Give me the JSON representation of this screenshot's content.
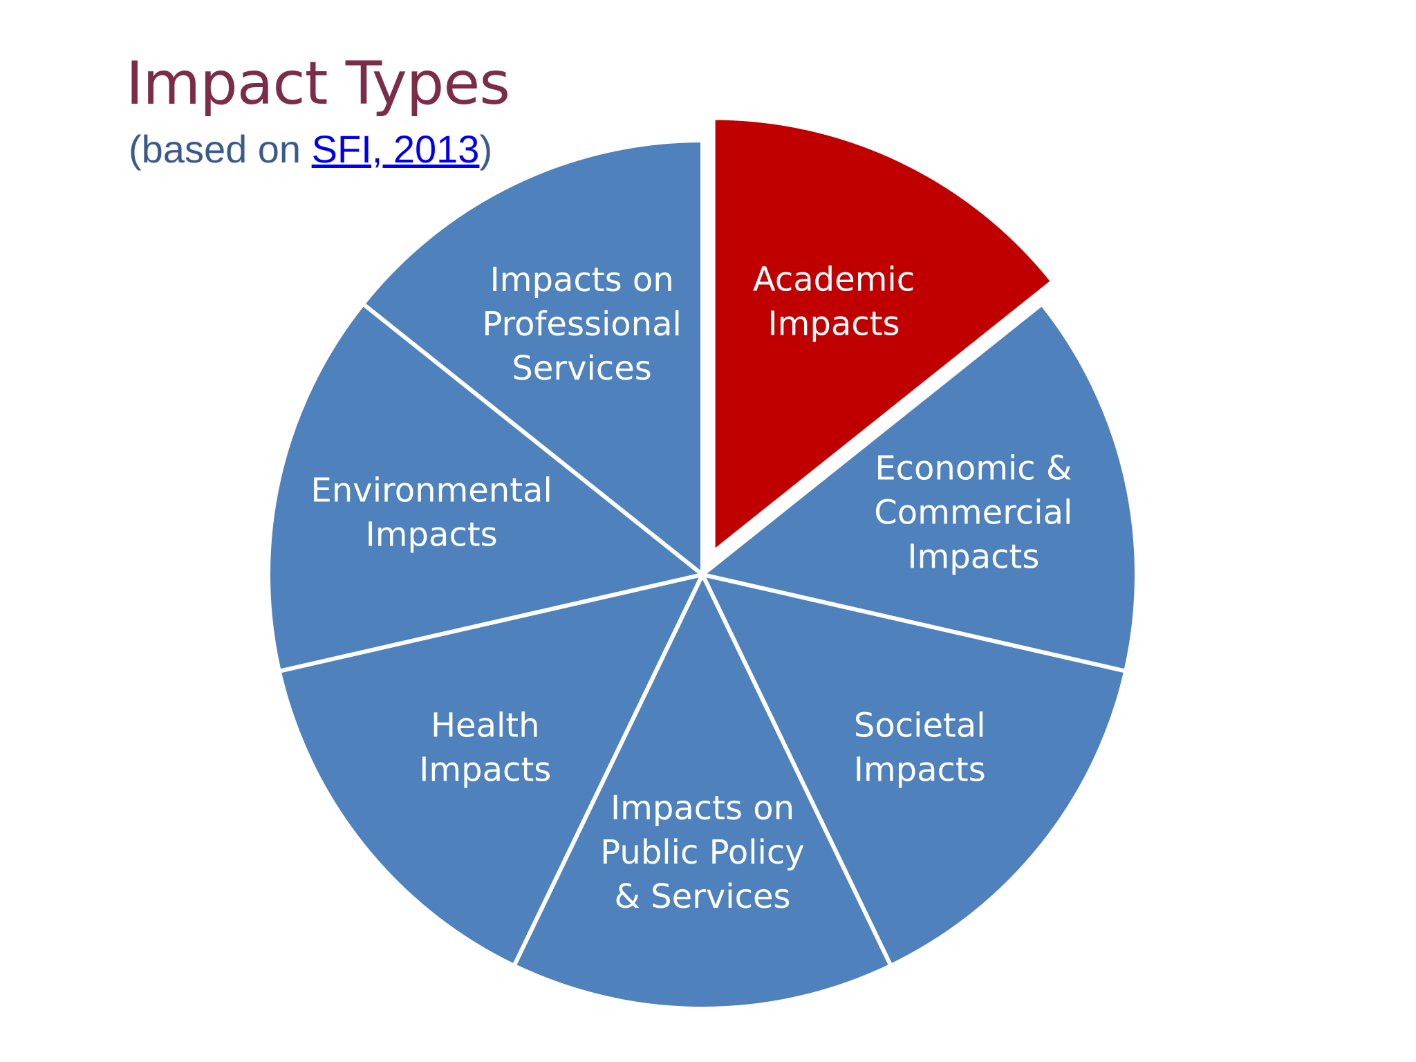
{
  "header": {
    "title": "Impact Types",
    "subtitle_prefix": "(based on ",
    "subtitle_link": "SFI, 2013",
    "subtitle_suffix": ")"
  },
  "colors": {
    "slice": "#4f81bd",
    "highlight": "#c00000",
    "title": "#7b2c48",
    "subtitle": "#3b5a8c",
    "link": "#0000ee"
  },
  "chart_data": {
    "type": "pie",
    "title": "Impact Types",
    "categories": [
      "Academic Impacts",
      "Economic & Commercial Impacts",
      "Societal Impacts",
      "Impacts on Public Policy & Services",
      "Health Impacts",
      "Environmental Impacts",
      "Impacts on Professional Services"
    ],
    "labels": [
      [
        "Academic",
        "Impacts"
      ],
      [
        "Economic &",
        "Commercial",
        "Impacts"
      ],
      [
        "Societal",
        "Impacts"
      ],
      [
        "Impacts on",
        "Public Policy",
        "& Services"
      ],
      [
        "Health",
        "Impacts"
      ],
      [
        "Environmental",
        "Impacts"
      ],
      [
        "Impacts on",
        "Professional",
        "Services"
      ]
    ],
    "values": [
      1,
      1,
      1,
      1,
      1,
      1,
      1
    ],
    "exploded": [
      "Academic Impacts"
    ],
    "legend": "none"
  }
}
